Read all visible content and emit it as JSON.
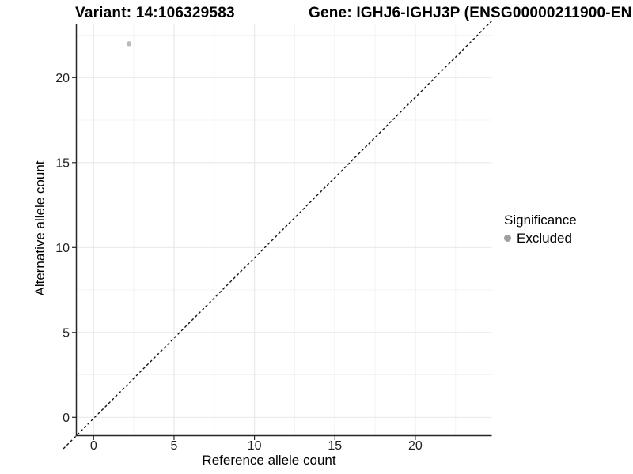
{
  "header": {
    "variant_title": "Variant: 14:106329583",
    "gene_title": "Gene: IGHJ6-IGHJ3P (ENSG00000211900-EN"
  },
  "axes": {
    "x_label": "Reference allele count",
    "y_label": "Alternative allele count"
  },
  "legend": {
    "title": "Significance",
    "items": [
      {
        "label": "Excluded",
        "color": "#a0a0a0"
      }
    ]
  },
  "chart_data": {
    "type": "scatter",
    "title": "Variant: 14:106329583   |   Gene: IGHJ6-IGHJ3P (ENSG00000211900-EN",
    "xlabel": "Reference allele count",
    "ylabel": "Alternative allele count",
    "xlim": [
      -1.1,
      24.8
    ],
    "ylim": [
      -1.1,
      23.2
    ],
    "x_ticks": [
      0,
      5,
      10,
      15,
      20
    ],
    "y_ticks": [
      0,
      5,
      10,
      15,
      20
    ],
    "minor_grid_step": 2.5,
    "grid": "major+minor",
    "background": "#ffffff",
    "major_grid_color": "#e9e9e9",
    "minor_grid_color": "#f3f3f3",
    "axis_color": "#262626",
    "legend_position": "right",
    "series": [
      {
        "name": "Excluded",
        "color": "#bcbcbc",
        "points": [
          {
            "x": 2.2,
            "y": 22
          }
        ]
      }
    ],
    "reference_line": {
      "type": "identity",
      "slope": 1,
      "intercept": 0,
      "linestyle": "dashed",
      "color": "#141414"
    }
  }
}
